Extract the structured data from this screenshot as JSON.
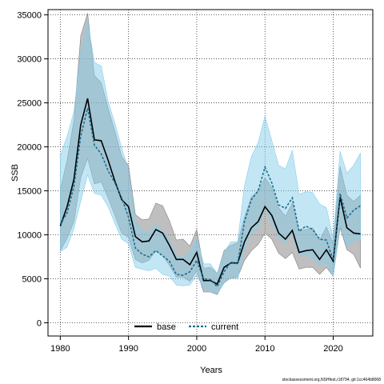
{
  "chart_data": {
    "type": "line",
    "xlabel": "Years",
    "ylabel": "SSB",
    "xlim": [
      1978.2,
      2025.8
    ],
    "ylim": [
      -1500,
      35600
    ],
    "x_ticks": [
      1980,
      1990,
      2000,
      2010,
      2020
    ],
    "y_ticks": [
      0,
      5000,
      10000,
      15000,
      20000,
      25000,
      30000,
      35000
    ],
    "grid": true,
    "legend_position": "bottom-center",
    "footer": "stockassessment.org,NSHfest,r18794, git:1cc464b8068",
    "x": [
      1980,
      1981,
      1982,
      1983,
      1984,
      1985,
      1986,
      1987,
      1988,
      1989,
      1990,
      1991,
      1992,
      1993,
      1994,
      1995,
      1996,
      1997,
      1998,
      1999,
      2000,
      2001,
      2002,
      2003,
      2004,
      2005,
      2006,
      2007,
      2008,
      2009,
      2010,
      2011,
      2012,
      2013,
      2014,
      2015,
      2016,
      2017,
      2018,
      2019,
      2020,
      2021,
      2022,
      2023,
      2024
    ],
    "series": [
      {
        "name": "base",
        "color": "#000000",
        "band_color": "#808080",
        "dash": "solid",
        "values": [
          11000,
          13200,
          16300,
          22500,
          25500,
          20800,
          20700,
          18500,
          16100,
          14000,
          13200,
          9800,
          9200,
          9300,
          10600,
          10200,
          8800,
          7200,
          7200,
          6600,
          8000,
          4800,
          4800,
          4400,
          6300,
          6800,
          6800,
          9200,
          10800,
          11500,
          13200,
          12200,
          10200,
          9500,
          10500,
          8000,
          8200,
          8300,
          7200,
          8300,
          7000,
          14300,
          10800,
          10200,
          10100
        ],
        "lower": [
          8200,
          9600,
          11500,
          16500,
          18700,
          15800,
          16000,
          14200,
          12200,
          10200,
          9700,
          7200,
          6800,
          7100,
          8200,
          7700,
          6500,
          5200,
          5200,
          4700,
          5900,
          3500,
          3500,
          3200,
          4600,
          5100,
          5200,
          7100,
          8200,
          8900,
          10200,
          9500,
          7900,
          7300,
          8000,
          6100,
          6300,
          6300,
          5500,
          6300,
          5300,
          10800,
          8300,
          7800,
          6200
        ],
        "upper": [
          15100,
          18500,
          23000,
          32600,
          35200,
          28100,
          27300,
          24400,
          21800,
          18900,
          17900,
          12300,
          11700,
          11800,
          13600,
          13300,
          11600,
          9400,
          9500,
          8700,
          10600,
          6200,
          6300,
          5600,
          8200,
          8800,
          9100,
          12000,
          14300,
          15000,
          16500,
          15400,
          13100,
          12100,
          13600,
          10400,
          10600,
          10800,
          9400,
          10900,
          9000,
          17800,
          14500,
          13800,
          14500
        ]
      },
      {
        "name": "current",
        "color": "#1a6e8c",
        "band_color": "#87ceeb",
        "dash": "dashed",
        "values": [
          11200,
          12500,
          15500,
          21200,
          24400,
          20200,
          19200,
          17300,
          15900,
          14200,
          12000,
          8500,
          7800,
          7500,
          8200,
          7600,
          7000,
          5500,
          5400,
          5800,
          7100,
          5000,
          4900,
          4100,
          5800,
          6900,
          6700,
          11500,
          14000,
          15000,
          17700,
          15900,
          13400,
          13000,
          14200,
          10400,
          11000,
          10600,
          9500,
          9400,
          7100,
          14700,
          11900,
          12800,
          13300
        ],
        "lower": [
          8100,
          8600,
          10700,
          13800,
          16800,
          14700,
          14500,
          13200,
          11300,
          9500,
          9000,
          6300,
          6100,
          5900,
          6200,
          5500,
          5300,
          4300,
          4200,
          4300,
          5400,
          3900,
          3600,
          3300,
          4500,
          5100,
          5000,
          8300,
          10200,
          10700,
          13100,
          11400,
          9700,
          9100,
          10200,
          7600,
          7700,
          7400,
          6500,
          6800,
          5200,
          11100,
          8600,
          9300,
          9500
        ],
        "upper": [
          19000,
          21200,
          24000,
          30800,
          34300,
          29600,
          29200,
          25200,
          22700,
          19900,
          17300,
          11600,
          10500,
          10200,
          11200,
          10400,
          9500,
          7600,
          7400,
          8000,
          9700,
          6700,
          6700,
          5600,
          8000,
          9200,
          9200,
          15600,
          18900,
          20500,
          23500,
          20700,
          17900,
          17500,
          19600,
          14600,
          14900,
          14800,
          13500,
          13100,
          9600,
          19500,
          17000,
          17900,
          19300
        ]
      }
    ]
  }
}
